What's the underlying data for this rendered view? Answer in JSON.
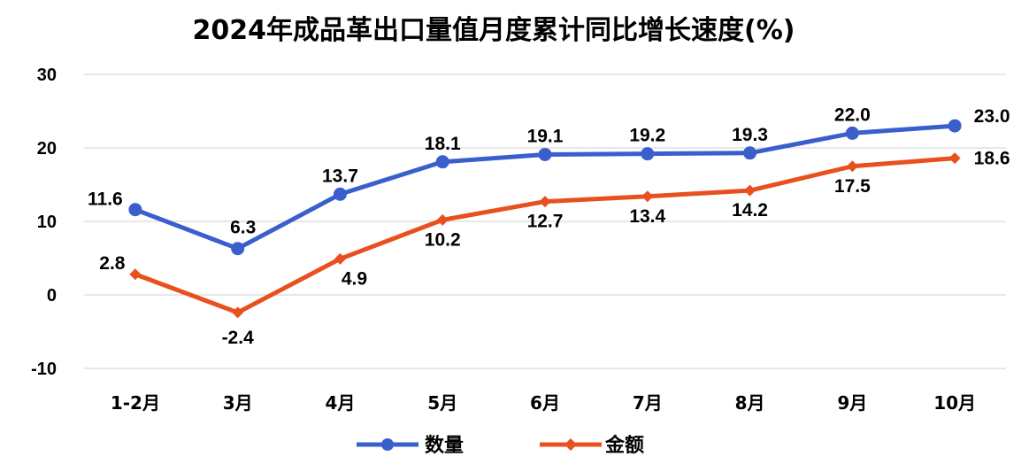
{
  "chart_data": {
    "type": "line",
    "title": "2024年成品革出口量值月度累计同比增长速度(%)",
    "categories": [
      "1-2月",
      "3月",
      "4月",
      "5月",
      "6月",
      "7月",
      "8月",
      "9月",
      "10月"
    ],
    "series": [
      {
        "name": "数量",
        "color": "#3a5fcd",
        "marker": "circle",
        "values": [
          11.6,
          6.3,
          13.7,
          18.1,
          19.1,
          19.2,
          19.3,
          22.0,
          23.0
        ],
        "labels": [
          "11.6",
          "6.3",
          "13.7",
          "18.1",
          "19.1",
          "19.2",
          "19.3",
          "22.0",
          "23.0"
        ]
      },
      {
        "name": "金额",
        "color": "#e8501e",
        "marker": "diamond",
        "values": [
          2.8,
          -2.4,
          4.9,
          10.2,
          12.7,
          13.4,
          14.2,
          17.5,
          18.6
        ],
        "labels": [
          "2.8",
          "-2.4",
          "4.9",
          "10.2",
          "12.7",
          "13.4",
          "14.2",
          "17.5",
          "18.6"
        ]
      }
    ],
    "ylim": [
      -10,
      30
    ],
    "yticks": [
      "-10",
      "0",
      "10",
      "20",
      "30"
    ],
    "grid": true,
    "legend": "bottom"
  }
}
